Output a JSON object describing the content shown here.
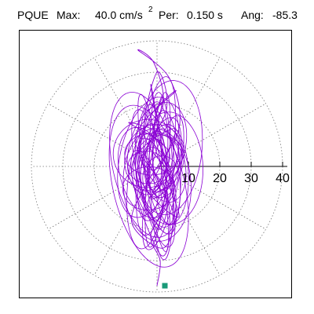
{
  "header": {
    "station": "PQUE",
    "max_label": "Max:",
    "max_value": "40.0 cm/s",
    "max_exp": "2",
    "per_label": "Per:",
    "per_value": "0.150 s",
    "ang_label": "Ang:",
    "ang_value": "-85.3"
  },
  "chart_data": {
    "type": "scatter",
    "subtype": "polar-orbit-hodogram",
    "title": "",
    "radial_ticks": [
      "10",
      "20",
      "30",
      "40"
    ],
    "radial_tick_values": [
      10,
      20,
      30,
      40
    ],
    "rmax": 40,
    "angular_gridlines_deg": [
      0,
      30,
      60,
      90,
      120,
      150,
      180,
      210,
      240,
      270,
      300,
      330
    ],
    "grid": "dotted",
    "series": [
      {
        "color": "#8a00d4",
        "x": [
          0,
          1,
          -2,
          3,
          -4,
          2,
          -1,
          -6,
          4,
          7,
          -3,
          -8,
          2,
          5,
          -5,
          -2,
          6,
          -7,
          3,
          1,
          -3,
          4,
          -9,
          8,
          -2,
          5,
          -4,
          0,
          3,
          -6,
          7,
          -1,
          2,
          -3,
          6,
          -8,
          1,
          4,
          -2,
          3
        ],
        "y": [
          -38,
          -30,
          -22,
          -10,
          5,
          20,
          33,
          37,
          28,
          12,
          -5,
          -18,
          -26,
          -14,
          2,
          16,
          24,
          9,
          -8,
          -20,
          -12,
          4,
          14,
          6,
          -10,
          -4,
          10,
          30,
          18,
          -2,
          -16,
          8,
          22,
          -6,
          12,
          0,
          -28,
          -15,
          26,
          -1
        ]
      }
    ],
    "end_marker": {
      "x": 0,
      "y": -38,
      "color": "#1a9a78"
    }
  }
}
